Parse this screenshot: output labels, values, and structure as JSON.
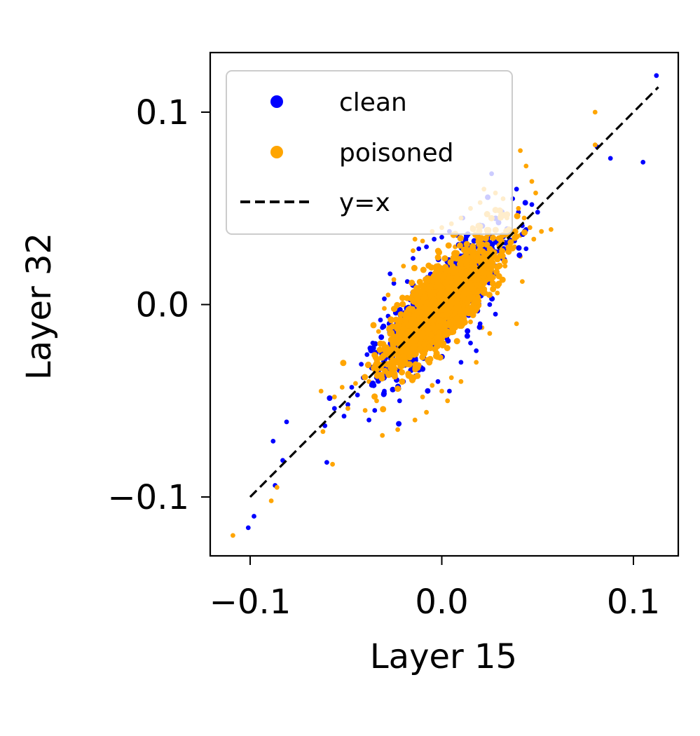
{
  "chart_data": {
    "type": "scatter",
    "title": "",
    "xlabel": "Layer 15",
    "ylabel": "Layer 32",
    "xlim": [
      -0.1,
      0.1
    ],
    "ylim": [
      -0.1,
      0.1
    ],
    "x_ticks": [
      -0.1,
      0.0,
      0.1
    ],
    "y_ticks": [
      -0.1,
      0.0,
      0.1
    ],
    "x_tick_labels": [
      "−0.1",
      "0.0",
      "0.1"
    ],
    "y_tick_labels": [
      "−0.1",
      "0.0",
      "0.1"
    ],
    "grid": false,
    "legend_position": "top-left",
    "colors": {
      "clean": "#0000ff",
      "poisoned": "#ffa500",
      "reference": "#000000"
    },
    "series": [
      {
        "name": "clean",
        "kind": "scatter",
        "color": "#0000ff",
        "points": [
          [
            -0.101,
            -0.116
          ],
          [
            -0.098,
            -0.11
          ],
          [
            -0.087,
            -0.094
          ],
          [
            -0.088,
            -0.071
          ],
          [
            -0.083,
            -0.081
          ],
          [
            -0.081,
            -0.061
          ],
          [
            -0.06,
            -0.082
          ],
          [
            -0.061,
            -0.063
          ],
          [
            -0.056,
            -0.054
          ],
          [
            -0.051,
            -0.058
          ],
          [
            -0.049,
            -0.052
          ],
          [
            -0.047,
            -0.043
          ],
          [
            -0.044,
            -0.047
          ],
          [
            -0.041,
            -0.038
          ],
          [
            -0.042,
            -0.031
          ],
          [
            -0.039,
            -0.026
          ],
          [
            -0.036,
            -0.02
          ],
          [
            -0.038,
            -0.06
          ],
          [
            -0.035,
            -0.055
          ],
          [
            -0.033,
            -0.035
          ],
          [
            -0.03,
            -0.045
          ],
          [
            -0.031,
            -0.012
          ],
          [
            -0.028,
            -0.006
          ],
          [
            -0.03,
            0.003
          ],
          [
            -0.025,
            0.011
          ],
          [
            -0.032,
            -0.008
          ],
          [
            -0.026,
            -0.032
          ],
          [
            -0.022,
            -0.05
          ],
          [
            -0.02,
            -0.04
          ],
          [
            -0.018,
            0.012
          ],
          [
            -0.015,
            0.024
          ],
          [
            -0.012,
            0.029
          ],
          [
            -0.008,
            0.03
          ],
          [
            -0.004,
            0.034
          ],
          [
            0.0,
            0.035
          ],
          [
            0.004,
            0.038
          ],
          [
            0.008,
            0.036
          ],
          [
            -0.002,
            -0.04
          ],
          [
            0.004,
            -0.045
          ],
          [
            0.01,
            -0.03
          ],
          [
            0.015,
            -0.02
          ],
          [
            0.02,
            -0.01
          ],
          [
            0.025,
            0.0
          ],
          [
            0.028,
            -0.005
          ],
          [
            0.03,
            0.02
          ],
          [
            0.032,
            0.028
          ],
          [
            0.035,
            0.03
          ],
          [
            0.038,
            0.033
          ],
          [
            0.04,
            0.048
          ],
          [
            0.042,
            0.041
          ],
          [
            0.044,
            0.039
          ],
          [
            0.047,
            0.052
          ],
          [
            0.05,
            0.048
          ],
          [
            0.039,
            0.06
          ],
          [
            0.037,
            0.055
          ],
          [
            0.026,
            0.068
          ],
          [
            0.044,
            0.029
          ],
          [
            0.011,
            0.045
          ],
          [
            -0.027,
            0.016
          ],
          [
            0.018,
            -0.024
          ],
          [
            0.081,
            0.082
          ],
          [
            0.088,
            0.076
          ],
          [
            0.105,
            0.074
          ],
          [
            0.112,
            0.119
          ]
        ]
      },
      {
        "name": "poisoned",
        "kind": "scatter",
        "color": "#ffa500",
        "points": [
          [
            -0.109,
            -0.12
          ],
          [
            -0.089,
            -0.102
          ],
          [
            -0.086,
            -0.095
          ],
          [
            -0.057,
            -0.083
          ],
          [
            -0.062,
            -0.066
          ],
          [
            -0.063,
            -0.045
          ],
          [
            -0.056,
            -0.048
          ],
          [
            -0.052,
            -0.043
          ],
          [
            -0.049,
            -0.054
          ],
          [
            -0.045,
            -0.041
          ],
          [
            -0.04,
            -0.055
          ],
          [
            -0.038,
            -0.04
          ],
          [
            -0.034,
            -0.05
          ],
          [
            -0.031,
            -0.068
          ],
          [
            -0.023,
            -0.065
          ],
          [
            -0.014,
            -0.06
          ],
          [
            -0.036,
            -0.023
          ],
          [
            -0.033,
            -0.014
          ],
          [
            -0.03,
            -0.002
          ],
          [
            -0.028,
            0.005
          ],
          [
            -0.025,
            0.013
          ],
          [
            -0.02,
            0.02
          ],
          [
            -0.015,
            0.028
          ],
          [
            -0.01,
            0.033
          ],
          [
            -0.005,
            0.038
          ],
          [
            0.0,
            0.04
          ],
          [
            0.005,
            0.042
          ],
          [
            0.01,
            0.045
          ],
          [
            0.015,
            0.05
          ],
          [
            0.02,
            0.053
          ],
          [
            0.022,
            0.06
          ],
          [
            0.028,
            0.058
          ],
          [
            0.032,
            0.055
          ],
          [
            0.034,
            0.045
          ],
          [
            0.036,
            0.038
          ],
          [
            0.04,
            0.05
          ],
          [
            0.043,
            0.045
          ],
          [
            0.046,
            0.04
          ],
          [
            0.041,
            0.036
          ],
          [
            0.042,
            0.012
          ],
          [
            0.039,
            -0.01
          ],
          [
            0.038,
            0.03
          ],
          [
            0.041,
            0.025
          ],
          [
            0.033,
            0.02
          ],
          [
            0.029,
            0.006
          ],
          [
            0.025,
            -0.015
          ],
          [
            0.018,
            -0.03
          ],
          [
            0.01,
            -0.04
          ],
          [
            0.005,
            -0.038
          ],
          [
            0.0,
            -0.045
          ],
          [
            -0.005,
            -0.042
          ],
          [
            -0.01,
            -0.048
          ],
          [
            -0.008,
            -0.056
          ],
          [
            0.003,
            -0.05
          ],
          [
            0.041,
            0.08
          ],
          [
            0.044,
            0.072
          ],
          [
            0.047,
            0.064
          ],
          [
            0.049,
            0.058
          ],
          [
            0.052,
            0.038
          ],
          [
            0.048,
            0.034
          ],
          [
            0.057,
            0.039
          ],
          [
            0.08,
            0.1
          ],
          [
            0.08,
            0.083
          ],
          [
            -0.014,
            0.034
          ],
          [
            -0.006,
            -0.023
          ],
          [
            0.016,
            0.04
          ],
          [
            0.007,
            0.03
          ],
          [
            0.015,
            -0.009
          ],
          [
            0.021,
            -0.012
          ],
          [
            0.024,
            0.03
          ]
        ]
      },
      {
        "name": "y=x",
        "kind": "line",
        "style": "dashed",
        "color": "#000000",
        "points": [
          [
            -0.1,
            -0.1
          ],
          [
            0.1,
            0.1
          ]
        ]
      }
    ]
  }
}
